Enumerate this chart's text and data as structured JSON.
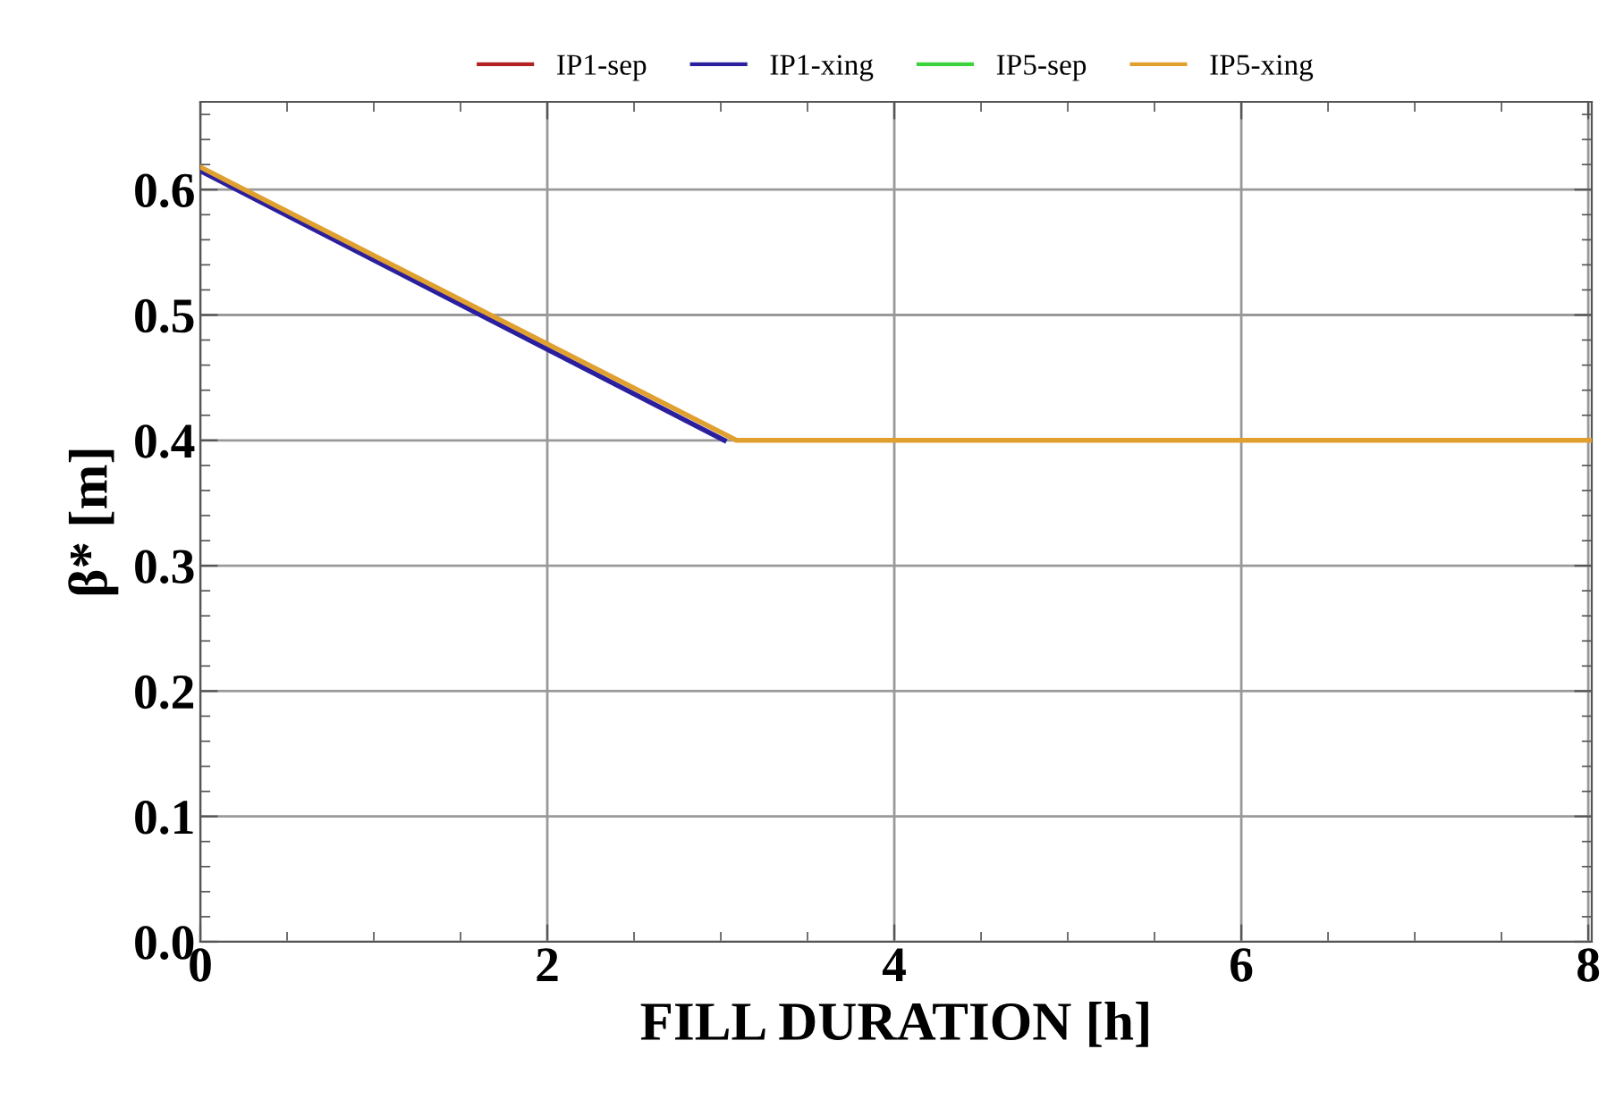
{
  "chart_data": {
    "type": "line",
    "xlabel": "FILL DURATION [h]",
    "ylabel": "β* [m]",
    "series": [
      {
        "name": "IP1-sep",
        "color": "#b22222"
      },
      {
        "name": "IP1-xing",
        "color": "#2b1f9e",
        "x": [
          0,
          3.02
        ],
        "values": [
          0.615,
          0.4
        ]
      },
      {
        "name": "IP5-sep",
        "color": "#3cd23c"
      },
      {
        "name": "IP5-xing",
        "color": "#e0a030",
        "x": [
          0,
          3.09,
          8.02
        ],
        "values": [
          0.618,
          0.4,
          0.4
        ]
      }
    ],
    "xlim": [
      0,
      8.02
    ],
    "ylim": [
      0,
      0.67
    ],
    "xticks": [
      0,
      2,
      4,
      6,
      8
    ],
    "yticks": [
      {
        "value": 0,
        "label": "0.0"
      },
      0.1,
      0.2,
      0.3,
      0.4,
      0.5,
      0.6
    ],
    "grid": true,
    "legend": "top",
    "marker": "none",
    "line_style": "solid"
  }
}
